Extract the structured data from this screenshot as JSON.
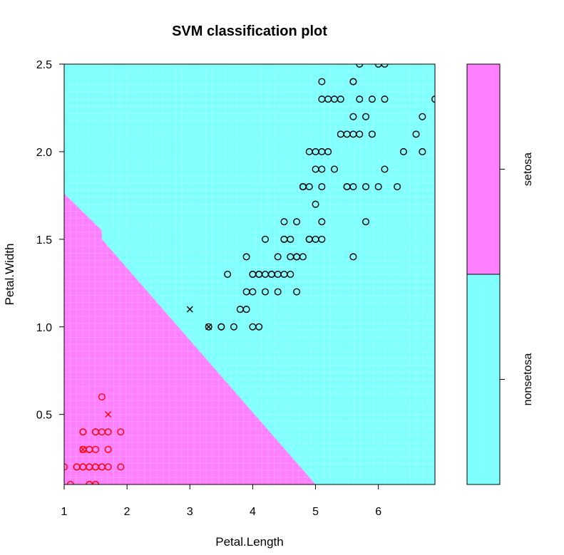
{
  "chart_data": {
    "type": "scatter",
    "title": "SVM classification plot",
    "xlabel": "Petal.Length",
    "ylabel": "Petal.Width",
    "xlim": [
      1,
      6.9
    ],
    "ylim": [
      0.1,
      2.5
    ],
    "x_ticks": [
      1,
      2,
      3,
      4,
      5,
      6
    ],
    "y_ticks": [
      0.5,
      1.0,
      1.5,
      2.0,
      2.5
    ],
    "y_tick_labels": [
      "0.5",
      "1.0",
      "1.5",
      "2.0",
      "2.5"
    ],
    "grid": false,
    "legend_position": "right",
    "colors": {
      "setosa_region": "#ff80ff",
      "nonsetosa_region": "#80ffff",
      "setosa_points": "#ff0000",
      "nonsetosa_points": "#000000"
    },
    "decision_boundary": [
      [
        1.0,
        1.76
      ],
      [
        1.6,
        1.55
      ],
      [
        1.6,
        1.5
      ],
      [
        5.0,
        0.1
      ]
    ],
    "legend": {
      "entries": [
        "setosa",
        "nonsetosa"
      ]
    },
    "series": [
      {
        "name": "setosa",
        "marker": "o",
        "x": [
          1.0,
          1.1,
          1.2,
          1.2,
          1.3,
          1.3,
          1.3,
          1.3,
          1.3,
          1.3,
          1.4,
          1.4,
          1.4,
          1.4,
          1.4,
          1.4,
          1.5,
          1.5,
          1.5,
          1.5,
          1.5,
          1.5,
          1.5,
          1.6,
          1.6,
          1.6,
          1.6,
          1.7,
          1.7,
          1.7,
          1.9,
          1.9
        ],
        "y": [
          0.2,
          0.1,
          0.2,
          0.2,
          0.2,
          0.2,
          0.3,
          0.3,
          0.4,
          0.4,
          0.1,
          0.2,
          0.2,
          0.3,
          0.3,
          0.1,
          0.1,
          0.2,
          0.2,
          0.4,
          0.4,
          0.3,
          0.1,
          0.2,
          0.2,
          0.4,
          0.6,
          0.2,
          0.3,
          0.4,
          0.2,
          0.4
        ]
      },
      {
        "name": "setosa support vectors",
        "marker": "x",
        "x": [
          1.3,
          1.7
        ],
        "y": [
          0.3,
          0.5
        ]
      },
      {
        "name": "nonsetosa",
        "marker": "o",
        "x": [
          3.3,
          3.5,
          3.5,
          3.6,
          3.7,
          3.8,
          3.9,
          3.9,
          3.9,
          4.0,
          4.0,
          4.0,
          4.0,
          4.1,
          4.1,
          4.1,
          4.2,
          4.2,
          4.2,
          4.3,
          4.3,
          4.4,
          4.4,
          4.4,
          4.5,
          4.5,
          4.5,
          4.5,
          4.6,
          4.6,
          4.6,
          4.7,
          4.7,
          4.7,
          4.7,
          4.8,
          4.8,
          4.8,
          4.8,
          4.9,
          4.9,
          4.9,
          4.9,
          5.0,
          5.0,
          5.0,
          5.0,
          5.1,
          5.1,
          5.1,
          5.1,
          5.1,
          5.1,
          5.1,
          5.2,
          5.2,
          5.3,
          5.3,
          5.4,
          5.4,
          5.5,
          5.5,
          5.5,
          5.6,
          5.6,
          5.6,
          5.6,
          5.6,
          5.6,
          5.7,
          5.7,
          5.7,
          5.8,
          5.8,
          5.8,
          5.9,
          5.9,
          6.0,
          6.0,
          6.1,
          6.1,
          6.1,
          6.3,
          6.4,
          6.6,
          6.7,
          6.7,
          6.9
        ],
        "y": [
          1.0,
          1.0,
          1.0,
          1.3,
          1.0,
          1.1,
          1.1,
          1.2,
          1.4,
          1.0,
          1.2,
          1.3,
          1.3,
          1.0,
          1.3,
          1.3,
          1.2,
          1.3,
          1.5,
          1.3,
          1.3,
          1.2,
          1.3,
          1.4,
          1.3,
          1.5,
          1.5,
          1.6,
          1.3,
          1.4,
          1.5,
          1.2,
          1.4,
          1.4,
          1.6,
          1.4,
          1.8,
          1.8,
          1.8,
          1.5,
          1.8,
          2.0,
          1.5,
          1.5,
          1.7,
          2.0,
          1.9,
          1.9,
          2.0,
          2.3,
          2.4,
          1.8,
          1.5,
          1.6,
          2.3,
          2.0,
          2.3,
          1.9,
          2.1,
          2.3,
          1.8,
          2.1,
          1.8,
          2.1,
          2.2,
          2.4,
          1.4,
          2.4,
          1.8,
          2.1,
          2.3,
          2.5,
          2.2,
          1.8,
          1.6,
          2.1,
          2.3,
          1.8,
          2.5,
          1.9,
          2.3,
          2.5,
          1.8,
          2.0,
          2.1,
          2.0,
          2.2,
          2.3
        ]
      },
      {
        "name": "nonsetosa support vectors",
        "marker": "x",
        "x": [
          3.0,
          3.3
        ],
        "y": [
          1.1,
          1.0
        ]
      }
    ]
  }
}
